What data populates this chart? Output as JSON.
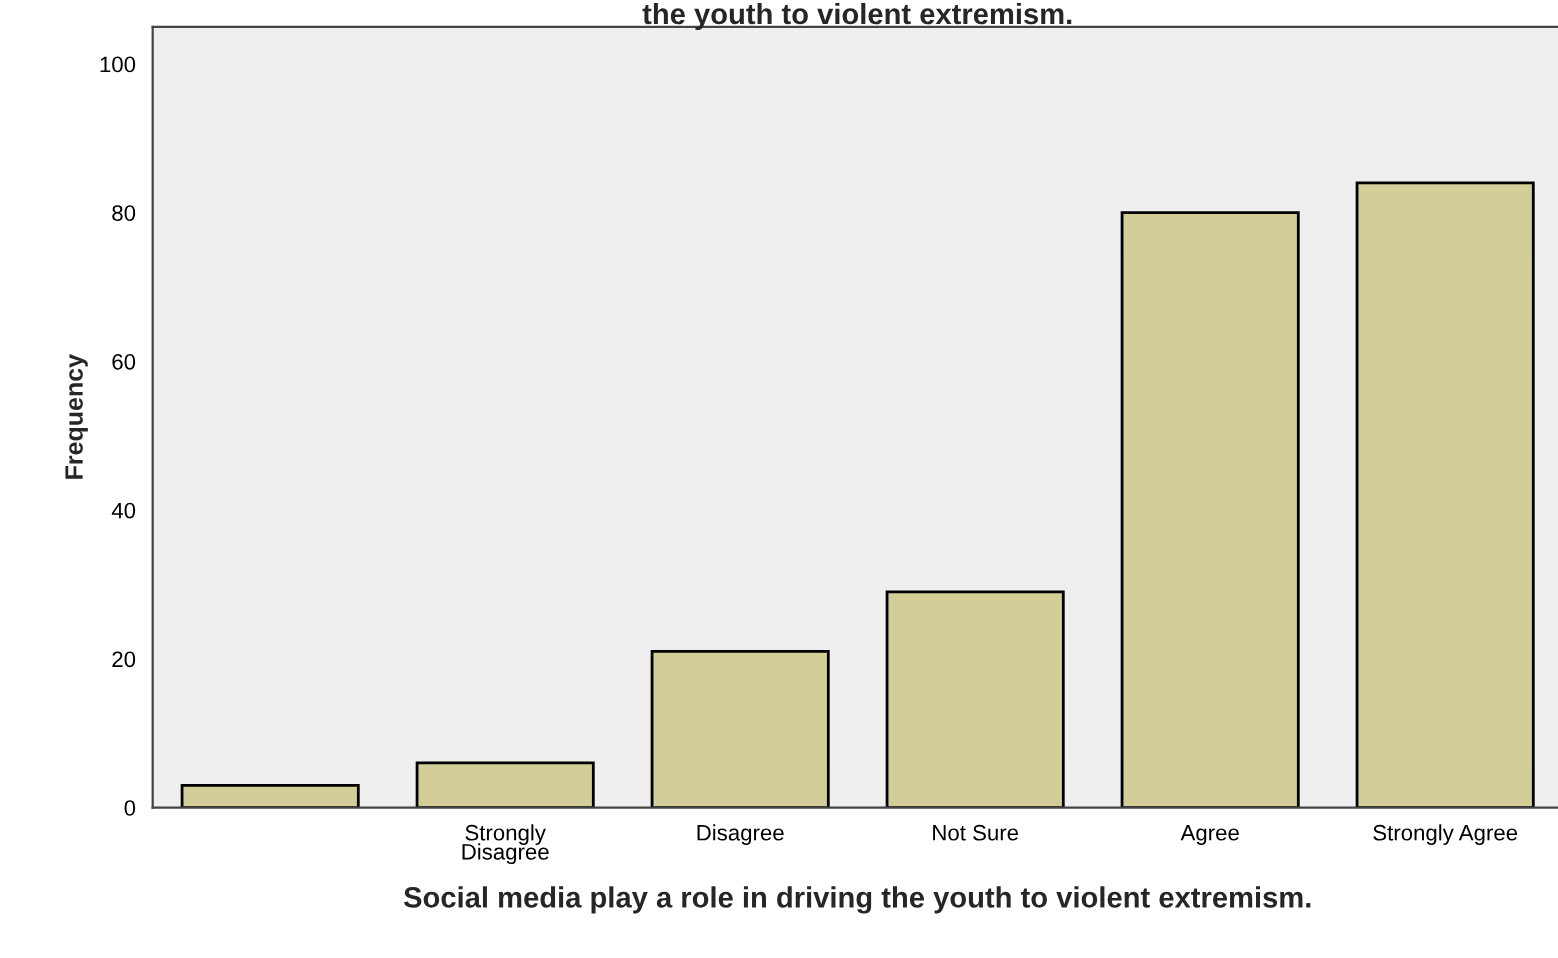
{
  "chart_data": {
    "type": "bar",
    "title": "the youth to violent extremism.",
    "xlabel": "Social media play a role in driving the youth to violent extremism.",
    "ylabel": "Frequency",
    "categories": [
      null,
      "Strongly\nDisagree",
      "Disagree",
      "Not Sure",
      "Agree",
      "Strongly Agree"
    ],
    "values": [
      3,
      6,
      21,
      29,
      80,
      84
    ],
    "color": "#d3cd97",
    "ylim": [
      0,
      105
    ],
    "yticks": [
      0,
      20,
      40,
      60,
      80,
      100
    ],
    "grid": false,
    "legend": false
  }
}
